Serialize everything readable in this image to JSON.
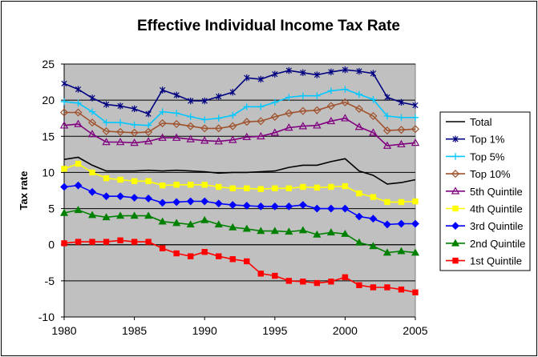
{
  "chart_data": {
    "type": "line",
    "title": "Effective Individual Income Tax Rate",
    "xlabel": "",
    "ylabel": "Tax rate",
    "xlim": [
      1980,
      2005
    ],
    "ylim": [
      -10,
      25
    ],
    "x_ticks": [
      "1980",
      "1985",
      "1990",
      "1995",
      "2000",
      "2005"
    ],
    "y_ticks": [
      "-10",
      "-5",
      "0",
      "5",
      "10",
      "15",
      "20",
      "25"
    ],
    "grid": true,
    "plot_background": "#c0c0c0",
    "legend_position": "right",
    "x": [
      1980,
      1981,
      1982,
      1983,
      1984,
      1985,
      1986,
      1987,
      1988,
      1989,
      1990,
      1991,
      1992,
      1993,
      1994,
      1995,
      1996,
      1997,
      1998,
      1999,
      2000,
      2001,
      2002,
      2003,
      2004,
      2005
    ],
    "series": [
      {
        "name": "Total",
        "color": "#000000",
        "marker": "none",
        "values": [
          11.8,
          12.1,
          11.0,
          10.2,
          10.2,
          10.2,
          10.3,
          10.2,
          10.3,
          10.2,
          10.1,
          9.9,
          10.0,
          10.0,
          10.1,
          10.2,
          10.7,
          11.0,
          11.0,
          11.5,
          11.9,
          10.2,
          9.6,
          8.4,
          8.6,
          9.0
        ]
      },
      {
        "name": "Top 1%",
        "color": "#000080",
        "marker": "star",
        "values": [
          22.3,
          21.5,
          20.3,
          19.4,
          19.2,
          18.8,
          18.1,
          21.4,
          20.7,
          19.9,
          19.9,
          20.5,
          21.1,
          23.1,
          22.9,
          23.6,
          24.1,
          23.8,
          23.5,
          23.9,
          24.2,
          24.0,
          23.7,
          20.4,
          19.7,
          19.3
        ]
      },
      {
        "name": "Top 5%",
        "color": "#00c8ff",
        "marker": "plus",
        "values": [
          19.8,
          19.6,
          18.4,
          16.9,
          16.9,
          16.6,
          16.5,
          18.4,
          18.2,
          17.7,
          17.3,
          17.5,
          17.9,
          19.1,
          19.1,
          19.7,
          20.4,
          20.6,
          20.6,
          21.3,
          21.5,
          20.8,
          20.1,
          17.8,
          17.6,
          17.6
        ]
      },
      {
        "name": "Top 10%",
        "color": "#a0522d",
        "marker": "diamond-open",
        "values": [
          18.3,
          18.3,
          16.9,
          15.7,
          15.6,
          15.5,
          15.6,
          16.8,
          16.7,
          16.4,
          16.1,
          16.1,
          16.4,
          17.0,
          17.1,
          17.7,
          18.2,
          18.5,
          18.6,
          19.2,
          19.7,
          18.8,
          17.8,
          15.8,
          15.9,
          16.0
        ]
      },
      {
        "name": "5th Quintile",
        "color": "#800080",
        "marker": "triangle-open",
        "values": [
          16.5,
          16.7,
          15.3,
          14.2,
          14.2,
          14.1,
          14.3,
          14.8,
          14.8,
          14.6,
          14.4,
          14.3,
          14.5,
          14.9,
          15.0,
          15.5,
          16.2,
          16.4,
          16.5,
          17.1,
          17.5,
          16.3,
          15.5,
          13.7,
          13.9,
          14.1
        ]
      },
      {
        "name": "4th Quintile",
        "color": "#ffff00",
        "marker": "square",
        "values": [
          10.5,
          11.2,
          10.0,
          9.2,
          9.0,
          8.8,
          8.8,
          8.2,
          8.3,
          8.3,
          8.3,
          8.0,
          7.8,
          7.8,
          7.7,
          7.8,
          7.8,
          8.0,
          7.9,
          8.0,
          8.1,
          7.1,
          6.6,
          5.9,
          5.9,
          6.0
        ]
      },
      {
        "name": "3rd Quintile",
        "color": "#0000ff",
        "marker": "diamond",
        "values": [
          8.0,
          8.2,
          7.3,
          6.7,
          6.7,
          6.5,
          6.4,
          5.8,
          5.9,
          6.0,
          6.0,
          5.7,
          5.5,
          5.4,
          5.3,
          5.3,
          5.3,
          5.5,
          5.0,
          5.0,
          5.0,
          3.9,
          3.6,
          2.8,
          2.9,
          2.9
        ]
      },
      {
        "name": "2nd Quintile",
        "color": "#008000",
        "marker": "triangle",
        "values": [
          4.4,
          4.8,
          4.1,
          3.8,
          4.0,
          4.0,
          4.0,
          3.2,
          3.0,
          2.8,
          3.4,
          2.8,
          2.4,
          2.2,
          1.9,
          1.9,
          1.8,
          2.0,
          1.4,
          1.7,
          1.5,
          0.3,
          -0.2,
          -1.1,
          -0.9,
          -1.1
        ]
      },
      {
        "name": "1st Quintile",
        "color": "#ff0000",
        "marker": "square",
        "values": [
          0.2,
          0.4,
          0.4,
          0.4,
          0.6,
          0.4,
          0.4,
          -0.5,
          -1.2,
          -1.6,
          -1.0,
          -1.6,
          -2.0,
          -2.3,
          -4.0,
          -4.3,
          -5.0,
          -5.1,
          -5.3,
          -5.1,
          -4.5,
          -5.6,
          -5.9,
          -5.9,
          -6.2,
          -6.6
        ]
      }
    ]
  }
}
